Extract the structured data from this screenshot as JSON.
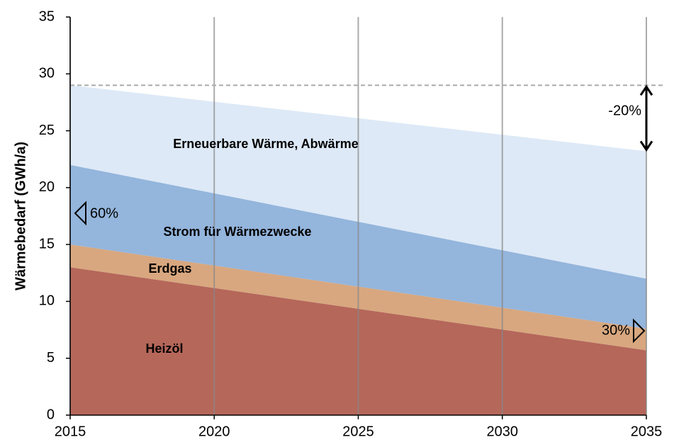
{
  "chart_data": {
    "type": "stacked-area",
    "y_label": "Wärmebedarf (GWh/a)",
    "x": [
      2015,
      2035
    ],
    "series": [
      {
        "name": "Heizöl",
        "color": "#b5675a",
        "values": [
          13,
          5.7
        ]
      },
      {
        "name": "Erdgas",
        "color": "#d8a77f",
        "values": [
          2,
          1.9
        ]
      },
      {
        "name": "Strom für Wärmezwecke",
        "color": "#94b5dc",
        "values": [
          7,
          4.4
        ]
      },
      {
        "name": "Erneuerbare Wärme, Abwärme",
        "color": "#dde9f6",
        "values": [
          7,
          11.2
        ]
      }
    ],
    "reference_line": 29,
    "annotations": [
      "-20%",
      "60%",
      "30%"
    ],
    "xlim": [
      2015,
      2035
    ],
    "xticks": [
      2015,
      2020,
      2025,
      2030,
      2035
    ],
    "ylim": [
      0,
      35
    ],
    "yticks": [
      0,
      5,
      10,
      15,
      20,
      25,
      30,
      35
    ],
    "grid": true
  }
}
